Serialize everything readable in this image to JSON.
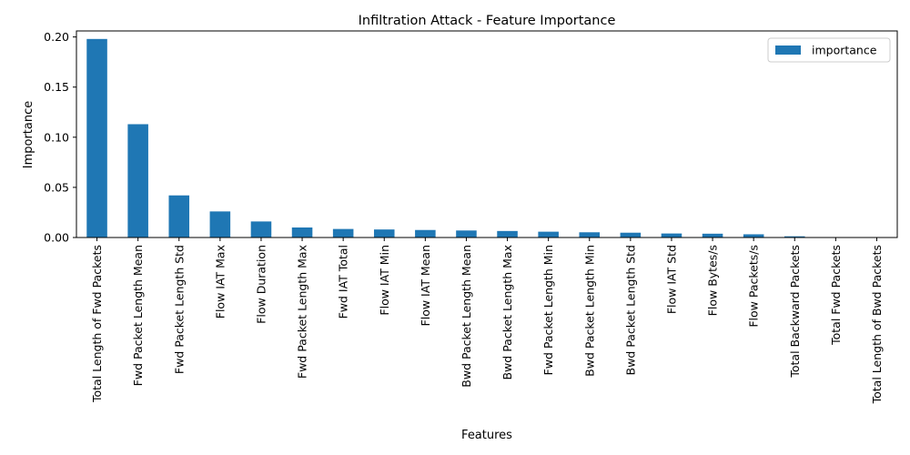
{
  "chart_data": {
    "type": "bar",
    "title": "Infiltration Attack - Feature Importance",
    "xlabel": "Features",
    "ylabel": "Importance",
    "ylim": [
      0,
      0.206
    ],
    "yticks": [
      0.0,
      0.05,
      0.1,
      0.15,
      0.2
    ],
    "ytick_labels": [
      "0.00",
      "0.05",
      "0.10",
      "0.15",
      "0.20"
    ],
    "grid": false,
    "legend_position": "top-right",
    "bar_color": "#1f77b4",
    "categories": [
      "Total Length of Fwd Packets",
      "Fwd Packet Length Mean",
      "Fwd Packet Length Std",
      "Flow IAT Max",
      "Flow Duration",
      "Fwd Packet Length Max",
      "Fwd IAT Total",
      "Flow IAT Min",
      "Flow IAT Mean",
      "Bwd Packet Length Mean",
      "Bwd Packet Length Max",
      "Fwd Packet Length Min",
      "Bwd Packet Length Min",
      "Bwd Packet Length Std",
      "Flow IAT Std",
      "Flow Bytes/s",
      "Flow Packets/s",
      "Total Backward Packets",
      "Total Fwd Packets",
      "Total Length of Bwd Packets"
    ],
    "series": [
      {
        "name": "importance",
        "values": [
          0.198,
          0.113,
          0.042,
          0.026,
          0.016,
          0.01,
          0.0085,
          0.008,
          0.0075,
          0.007,
          0.0065,
          0.0058,
          0.0052,
          0.0048,
          0.004,
          0.0038,
          0.0032,
          0.0012,
          0.0002,
          0.0001
        ]
      }
    ]
  }
}
